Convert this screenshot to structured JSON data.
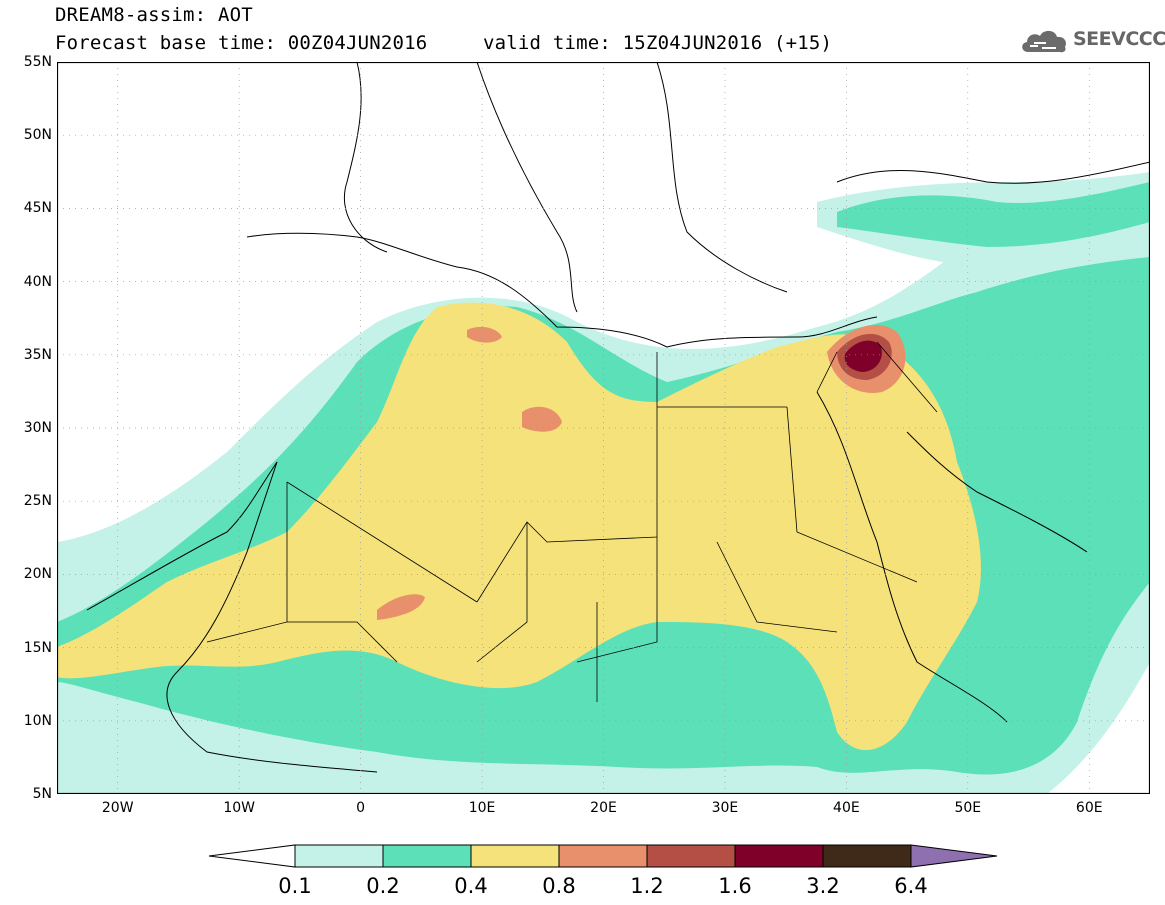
{
  "title": {
    "line1": "DREAM8-assim: AOT",
    "base_time": "Forecast base time: 00Z04JUN2016",
    "valid_time": "valid time: 15Z04JUN2016 (+15)"
  },
  "logo": {
    "text": "SEEVCCC",
    "icon": "cloud-logo-icon",
    "color": "#6b6b6b"
  },
  "axes": {
    "lat_labels": [
      "55N",
      "50N",
      "45N",
      "40N",
      "35N",
      "30N",
      "25N",
      "20N",
      "15N",
      "10N",
      "5N"
    ],
    "lon_labels": [
      "20W",
      "10W",
      "0",
      "10E",
      "20E",
      "30E",
      "40E",
      "50E",
      "60E"
    ],
    "lat_range": [
      5,
      55
    ],
    "lon_range": [
      -25,
      65
    ]
  },
  "colorbar": {
    "labels": [
      "0.1",
      "0.2",
      "0.4",
      "0.8",
      "1.2",
      "1.6",
      "3.2",
      "6.4"
    ],
    "colors": [
      "#ffffff",
      "#c4f2e8",
      "#5ce0b8",
      "#f5e27a",
      "#e8906b",
      "#b34f44",
      "#7f0029",
      "#3f2a1a",
      "#8e6fb0"
    ]
  }
}
